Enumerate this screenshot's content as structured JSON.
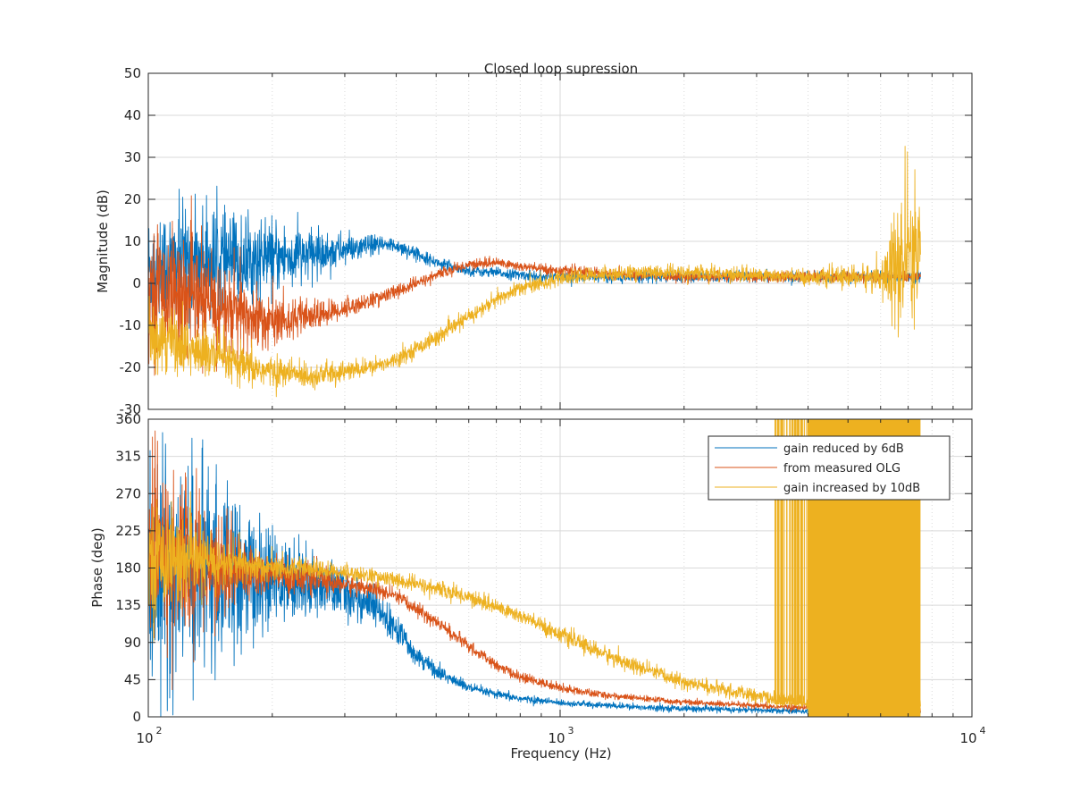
{
  "chart_data": [
    {
      "type": "line",
      "title": "Closed loop supression",
      "xlabel": "",
      "ylabel": "Magnitude (dB)",
      "xscale": "log",
      "xlim": [
        100,
        10000
      ],
      "ylim": [
        -30,
        50
      ],
      "yticks": [
        "-30",
        "-20",
        "-10",
        "0",
        "10",
        "20",
        "30",
        "40",
        "50"
      ],
      "ytick_values": [
        -30,
        -20,
        -10,
        0,
        10,
        20,
        30,
        40,
        50
      ],
      "grid": true,
      "series": [
        {
          "name": "gain reduced by 6dB",
          "color": "#0072BD",
          "x": [
            100,
            120,
            150,
            200,
            250,
            300,
            350,
            400,
            450,
            500,
            600,
            700,
            800,
            1000,
            1500,
            2000,
            3000,
            4000,
            5000,
            6000,
            7000,
            7500
          ],
          "y": [
            3,
            5,
            5,
            6,
            7,
            8,
            9,
            9,
            7,
            5,
            3,
            2.5,
            2,
            1.5,
            1.5,
            1.5,
            1.5,
            1.5,
            1.5,
            1.5,
            1.5,
            1.5
          ],
          "noise": [
            12,
            11,
            10,
            7,
            5,
            3,
            2,
            1.5,
            1.2,
            1,
            1,
            1,
            1,
            1,
            1,
            1,
            1,
            1,
            1,
            1,
            1,
            1
          ]
        },
        {
          "name": "from measured OLG",
          "color": "#D95319",
          "x": [
            100,
            120,
            150,
            170,
            200,
            250,
            300,
            350,
            400,
            450,
            500,
            600,
            700,
            800,
            1000,
            1500,
            2000,
            3000,
            4000,
            5000,
            6000,
            7000,
            7500
          ],
          "y": [
            0,
            -3,
            -6,
            -8,
            -9,
            -8,
            -6,
            -4,
            -2,
            0,
            2,
            4.5,
            5,
            4,
            3,
            2,
            1.5,
            1.5,
            1.5,
            1.5,
            1.5,
            1.5,
            1.5
          ],
          "noise": [
            12,
            11,
            10,
            8,
            5,
            3,
            2,
            1.5,
            1.5,
            1.2,
            1,
            1,
            1,
            1,
            1,
            1,
            1,
            1,
            1,
            1,
            1,
            1,
            1
          ]
        },
        {
          "name": "gain increased by 10dB",
          "color": "#EDB120",
          "x": [
            100,
            120,
            150,
            170,
            200,
            250,
            300,
            350,
            400,
            500,
            600,
            700,
            800,
            1000,
            1200,
            1500,
            2000,
            3000,
            4000,
            5000,
            6000,
            6500,
            7000,
            7500
          ],
          "y": [
            -10,
            -15,
            -18,
            -20,
            -21,
            -22,
            -21,
            -20,
            -18,
            -13,
            -8,
            -4,
            -1,
            1,
            2,
            2.5,
            2.5,
            2,
            1.5,
            1.5,
            1.5,
            3,
            5,
            2
          ],
          "noise": [
            8,
            6,
            5,
            4,
            3,
            2.5,
            2,
            1.5,
            1.5,
            1.5,
            1.5,
            1.5,
            1.5,
            1.5,
            1.5,
            1.5,
            1.5,
            1.5,
            1.5,
            2,
            3,
            12,
            18,
            14
          ]
        }
      ]
    },
    {
      "type": "line",
      "title": "",
      "xlabel": "Frequency  (Hz)",
      "ylabel": "Phase (deg)",
      "xscale": "log",
      "xlim": [
        100,
        10000
      ],
      "ylim": [
        0,
        360
      ],
      "xticks": [
        "10",
        "10",
        "10"
      ],
      "xtick_exponents": [
        "2",
        "3",
        "4"
      ],
      "xtick_values": [
        100,
        1000,
        10000
      ],
      "yticks": [
        "0",
        "45",
        "90",
        "135",
        "180",
        "225",
        "270",
        "315",
        "360"
      ],
      "ytick_values": [
        0,
        45,
        90,
        135,
        180,
        225,
        270,
        315,
        360
      ],
      "grid": true,
      "legend_position": "top-right",
      "series": [
        {
          "name": "gain reduced by 6dB",
          "color": "#0072BD",
          "x": [
            100,
            120,
            150,
            200,
            250,
            300,
            350,
            400,
            450,
            500,
            600,
            700,
            800,
            1000,
            1500,
            2000,
            3000,
            4000,
            5000,
            6000,
            7000,
            7500
          ],
          "y": [
            180,
            175,
            170,
            165,
            160,
            150,
            135,
            105,
            75,
            55,
            35,
            27,
            22,
            17,
            12,
            10,
            8,
            7,
            7,
            7,
            7,
            7
          ],
          "noise": [
            120,
            110,
            90,
            45,
            30,
            25,
            20,
            15,
            10,
            8,
            5,
            4,
            4,
            3,
            3,
            3,
            3,
            3,
            3,
            3,
            3,
            3
          ]
        },
        {
          "name": "from measured OLG",
          "color": "#D95319",
          "x": [
            100,
            120,
            150,
            200,
            250,
            300,
            350,
            400,
            450,
            500,
            600,
            700,
            800,
            1000,
            1200,
            1500,
            2000,
            3000,
            4000,
            5000,
            6000,
            7000,
            7500
          ],
          "y": [
            200,
            190,
            180,
            172,
            168,
            160,
            155,
            145,
            130,
            115,
            85,
            62,
            48,
            35,
            28,
            23,
            18,
            13,
            11,
            10,
            10,
            10,
            10
          ],
          "noise": [
            100,
            80,
            50,
            20,
            15,
            10,
            8,
            8,
            7,
            7,
            6,
            5,
            5,
            4,
            4,
            3,
            3,
            3,
            3,
            3,
            3,
            3,
            3
          ]
        },
        {
          "name": "gain increased by 10dB",
          "color": "#EDB120",
          "x": [
            100,
            120,
            150,
            200,
            250,
            300,
            350,
            400,
            450,
            500,
            600,
            700,
            800,
            1000,
            1200,
            1500,
            2000,
            2500,
            3000,
            3500,
            4000,
            5000,
            6000,
            7000,
            7500
          ],
          "y": [
            195,
            190,
            185,
            180,
            178,
            175,
            170,
            165,
            160,
            155,
            145,
            133,
            122,
            100,
            82,
            62,
            42,
            32,
            25,
            20,
            17,
            15,
            14,
            14,
            14
          ],
          "noise": [
            60,
            40,
            25,
            12,
            10,
            8,
            8,
            8,
            8,
            8,
            8,
            8,
            8,
            8,
            8,
            8,
            7,
            7,
            7,
            7,
            7,
            7,
            7,
            7,
            7
          ]
        }
      ],
      "phase_wrap_band": {
        "color": "#EDB120",
        "x_start": 4000,
        "x_end": 7500,
        "y_low": 0,
        "y_high": 360,
        "sparse_start": 3300
      }
    }
  ]
}
